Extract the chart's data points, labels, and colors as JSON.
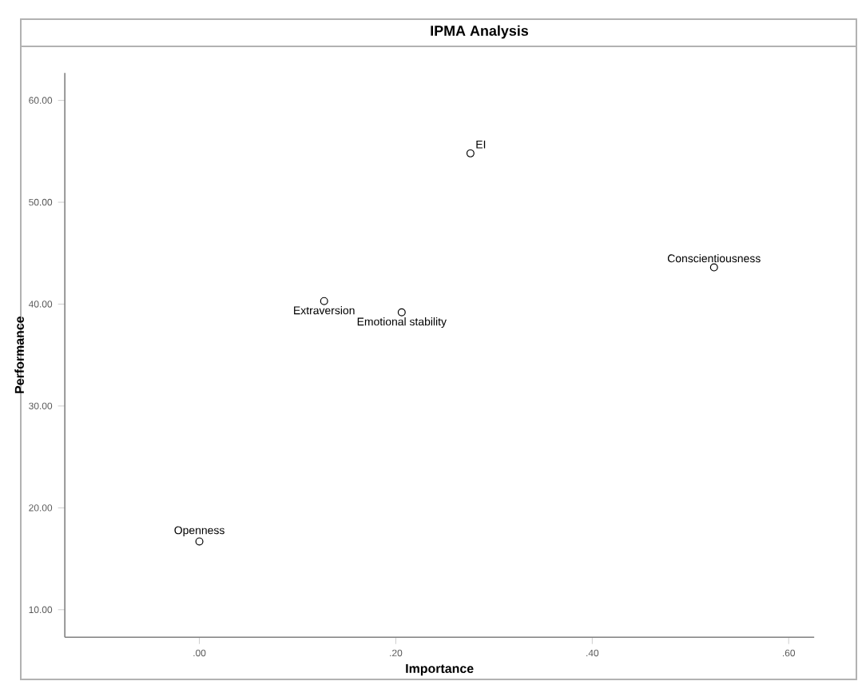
{
  "chart_data": {
    "type": "scatter",
    "title": "IPMA Analysis",
    "xlabel": "Importance",
    "ylabel": "Performance",
    "x": [
      0.0,
      0.127,
      0.206,
      0.276,
      0.524
    ],
    "values": [
      16.7,
      40.3,
      39.2,
      54.8,
      43.6
    ],
    "color": "#000000",
    "marker": "circle",
    "grid": false,
    "legend": false,
    "xlim": [
      -0.137,
      0.626
    ],
    "ylim": [
      7.3,
      62.7
    ],
    "xticks": [
      {
        "value": 0,
        "label": ".00"
      },
      {
        "value": 0.2,
        "label": ".20"
      },
      {
        "value": 0.4,
        "label": ".40"
      },
      {
        "value": 0.6,
        "label": ".60"
      }
    ],
    "yticks": [
      {
        "value": 10,
        "label": "10.00"
      },
      {
        "value": 20,
        "label": "20.00"
      },
      {
        "value": 30,
        "label": "30.00"
      },
      {
        "value": 40,
        "label": "40.00"
      },
      {
        "value": 50,
        "label": "50.00"
      },
      {
        "value": 60,
        "label": "60.00"
      }
    ],
    "annotations": [
      {
        "text": "Openness",
        "x": 0.0,
        "y": 16.7
      },
      {
        "text": "Extraversion",
        "x": 0.127,
        "y": 40.3
      },
      {
        "text": "Emotional stability",
        "x": 0.206,
        "y": 39.2
      },
      {
        "text": "EI",
        "x": 0.276,
        "y": 54.8
      },
      {
        "text": "Conscientiousness",
        "x": 0.524,
        "y": 43.6
      }
    ]
  }
}
